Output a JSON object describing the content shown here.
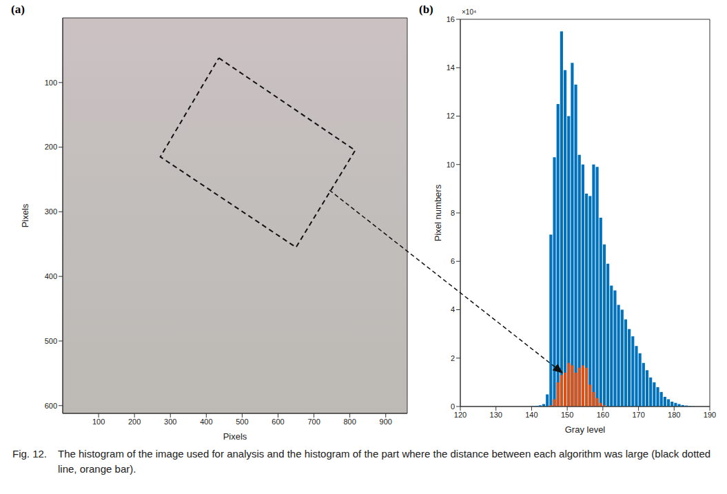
{
  "chart_data": [
    {
      "type": "image",
      "panel": "(a)",
      "xlabel": "Pixels",
      "ylabel": "Pixels",
      "xlim": [
        0,
        960
      ],
      "ylim": [
        612,
        0
      ],
      "xticks": [
        100,
        200,
        300,
        400,
        500,
        600,
        700,
        800,
        900
      ],
      "yticks": [
        100,
        200,
        300,
        400,
        500,
        600
      ],
      "region": {
        "x": [
          435,
          815,
          650,
          272
        ],
        "y": [
          62,
          205,
          355,
          215
        ]
      },
      "line_style": "dashed"
    },
    {
      "type": "histogram",
      "panel": "(b)",
      "xlabel": "Gray level",
      "ylabel": "Pixel numbers",
      "y_multiplier": "×10⁴",
      "xlim": [
        120,
        190
      ],
      "ylim": [
        0,
        16
      ],
      "xticks": [
        120,
        130,
        140,
        150,
        160,
        170,
        180,
        190
      ],
      "yticks": [
        0,
        2,
        4,
        6,
        8,
        10,
        12,
        14,
        16
      ],
      "bins": [
        140,
        141,
        142,
        143,
        144,
        145,
        146,
        147,
        148,
        149,
        150,
        151,
        152,
        153,
        154,
        155,
        156,
        157,
        158,
        159,
        160,
        161,
        162,
        163,
        164,
        165,
        166,
        167,
        168,
        169,
        170,
        171,
        172,
        173,
        174,
        175,
        176,
        177,
        178,
        179,
        180,
        181,
        182,
        183,
        184,
        185,
        186
      ],
      "series": [
        {
          "color": "#0072bd",
          "values": [
            0.02,
            0.03,
            0.05,
            0.1,
            0.5,
            7.1,
            10.3,
            12.5,
            15.5,
            13.9,
            12.0,
            14.2,
            13.3,
            10.4,
            10.0,
            8.8,
            8.7,
            10.0,
            9.9,
            7.8,
            6.7,
            5.9,
            5.0,
            4.8,
            4.2,
            4.0,
            3.6,
            3.2,
            2.9,
            2.5,
            2.2,
            1.8,
            1.5,
            1.2,
            1.0,
            0.8,
            0.6,
            0.4,
            0.3,
            0.2,
            0.15,
            0.1,
            0.06,
            0.04,
            0.02,
            0.01
          ]
        },
        {
          "color": "#d95319",
          "values": [
            0,
            0,
            0,
            0,
            0,
            0.05,
            0.3,
            1.0,
            1.3,
            1.4,
            1.8,
            1.7,
            1.4,
            1.6,
            1.7,
            1.6,
            0.9,
            0.6,
            0.35,
            0.15,
            0.05,
            0,
            0,
            0,
            0,
            0,
            0,
            0,
            0,
            0,
            0,
            0,
            0,
            0,
            0,
            0,
            0,
            0,
            0,
            0,
            0,
            0,
            0,
            0,
            0,
            0
          ]
        }
      ]
    }
  ],
  "caption_label": "Fig. 12.",
  "caption": "The histogram of the image used for analysis and the histogram of the part where the distance between each algorithm was large (black dotted line, orange bar)."
}
